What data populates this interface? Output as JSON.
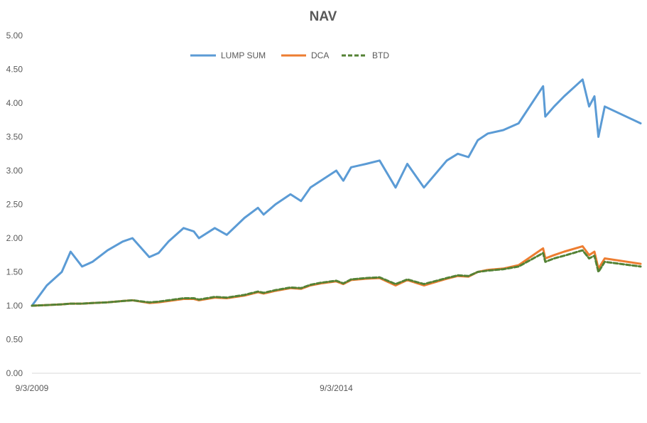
{
  "chart_data": {
    "type": "line",
    "title": "NAV",
    "xlabel": "",
    "ylabel": "",
    "x_tick_labels": [
      "9/3/2009",
      "9/3/2014"
    ],
    "xlim": [
      "9/3/2009",
      "9/3/2019"
    ],
    "ylim": [
      0,
      5
    ],
    "y_ticks": [
      "0.00",
      "0.50",
      "1.00",
      "1.50",
      "2.00",
      "2.50",
      "3.00",
      "3.50",
      "4.00",
      "4.50",
      "5.00"
    ],
    "grid": false,
    "legend_position": "top",
    "x": [
      "9/3/2009",
      "12/1/2009",
      "3/1/2010",
      "4/23/2010",
      "7/1/2010",
      "9/1/2010",
      "12/1/2010",
      "3/1/2011",
      "4/29/2011",
      "8/8/2011",
      "10/3/2011",
      "12/1/2011",
      "3/1/2012",
      "5/1/2012",
      "6/1/2012",
      "9/4/2012",
      "11/15/2012",
      "3/1/2013",
      "5/21/2013",
      "6/24/2013",
      "9/3/2013",
      "12/2/2013",
      "2/3/2014",
      "4/1/2014",
      "6/2/2014",
      "9/3/2014",
      "10/15/2014",
      "12/1/2014",
      "3/2/2015",
      "5/21/2015",
      "8/25/2015",
      "11/3/2015",
      "2/11/2016",
      "6/27/2016",
      "9/1/2016",
      "11/4/2016",
      "12/30/2016",
      "3/1/2017",
      "6/1/2017",
      "9/1/2017",
      "1/26/2018",
      "2/8/2018",
      "4/2/2018",
      "6/1/2018",
      "9/20/2018",
      "10/29/2018",
      "11/30/2018",
      "12/24/2018",
      "1/31/2019",
      "9/3/2019"
    ],
    "series": [
      {
        "name": "LUMP SUM",
        "color": "#5B9BD5",
        "dash": "solid",
        "values": [
          1.0,
          1.3,
          1.5,
          1.8,
          1.58,
          1.65,
          1.82,
          1.95,
          2.0,
          1.72,
          1.78,
          1.95,
          2.15,
          2.1,
          2.0,
          2.15,
          2.05,
          2.3,
          2.45,
          2.35,
          2.5,
          2.65,
          2.55,
          2.75,
          2.85,
          3.0,
          2.85,
          3.05,
          3.1,
          3.15,
          2.75,
          3.1,
          2.75,
          3.15,
          3.25,
          3.2,
          3.45,
          3.55,
          3.6,
          3.7,
          4.25,
          3.8,
          3.95,
          4.1,
          4.35,
          3.95,
          4.1,
          3.5,
          3.95,
          3.7
        ]
      },
      {
        "name": "DCA",
        "color": "#ED7D31",
        "dash": "solid",
        "values": [
          1.0,
          1.01,
          1.02,
          1.03,
          1.03,
          1.04,
          1.05,
          1.07,
          1.08,
          1.04,
          1.05,
          1.07,
          1.1,
          1.1,
          1.08,
          1.12,
          1.11,
          1.15,
          1.2,
          1.18,
          1.22,
          1.26,
          1.25,
          1.3,
          1.33,
          1.36,
          1.32,
          1.38,
          1.4,
          1.41,
          1.3,
          1.38,
          1.3,
          1.4,
          1.44,
          1.43,
          1.5,
          1.53,
          1.55,
          1.6,
          1.85,
          1.7,
          1.75,
          1.8,
          1.88,
          1.75,
          1.8,
          1.55,
          1.7,
          1.62
        ]
      },
      {
        "name": "BTD",
        "color": "#548235",
        "dash": "dashed",
        "values": [
          1.0,
          1.01,
          1.02,
          1.03,
          1.03,
          1.04,
          1.05,
          1.07,
          1.08,
          1.05,
          1.06,
          1.08,
          1.11,
          1.11,
          1.09,
          1.13,
          1.12,
          1.16,
          1.21,
          1.19,
          1.23,
          1.27,
          1.26,
          1.31,
          1.34,
          1.37,
          1.33,
          1.39,
          1.41,
          1.42,
          1.32,
          1.39,
          1.32,
          1.41,
          1.45,
          1.44,
          1.5,
          1.52,
          1.54,
          1.58,
          1.78,
          1.65,
          1.7,
          1.74,
          1.82,
          1.7,
          1.74,
          1.5,
          1.65,
          1.58
        ]
      }
    ]
  }
}
